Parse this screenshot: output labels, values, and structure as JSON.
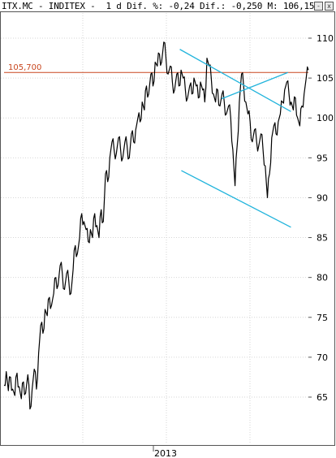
{
  "header": {
    "ticker_line": "ITX.MC - INDITEX -  1 d Dif. %: -0,24 Dif.: -0,250 M: 106,150",
    "button_min_label": "-",
    "button_close_label": "x"
  },
  "colors": {
    "price_line": "#000000",
    "reference_line": "#c8461e",
    "trend_lines": "#22b4dc",
    "grid": "#d6d6d6",
    "frame": "#555555"
  },
  "chart_data": {
    "type": "line",
    "y_axis_side": "right",
    "ylim": [
      61,
      112
    ],
    "yticks": [
      65,
      70,
      75,
      80,
      85,
      90,
      95,
      100,
      105,
      110
    ],
    "x_tick_labels": [
      "2013"
    ],
    "grid": true,
    "reference_line": {
      "label": "105,700",
      "value": 105.7
    },
    "series": [
      {
        "values": [
          66.5,
          68.2,
          65.8,
          67.5,
          66.0,
          65.2,
          68.0,
          66.3,
          64.8,
          66.9,
          65.5,
          67.8,
          63.5,
          66.0,
          68.5,
          66.0,
          70.5,
          74.0,
          73.0,
          76.0,
          75.2,
          77.5,
          76.5,
          78.0,
          80.0,
          79.0,
          81.5,
          80.5,
          78.5,
          80.5,
          79.5,
          78.0,
          81.0,
          84.0,
          83.0,
          85.0,
          88.0,
          87.0,
          86.0,
          84.5,
          86.0,
          85.0,
          88.0,
          86.5,
          85.0,
          88.5,
          87.0,
          93.0,
          92.0,
          95.0,
          97.0,
          96.0,
          95.5,
          97.5,
          96.0,
          95.0,
          97.0,
          96.5,
          95.0,
          98.0,
          97.0,
          98.5,
          100.0,
          99.5,
          102.0,
          101.0,
          104.0,
          103.0,
          105.5,
          104.0,
          107.0,
          106.5,
          108.0,
          107.0,
          109.5,
          107.5,
          105.5,
          106.5,
          104.5,
          103.5,
          105.5,
          104.0,
          106.0,
          105.0,
          103.5,
          102.5,
          104.0,
          103.0,
          105.0,
          104.0,
          102.5,
          104.5,
          103.5,
          102.0,
          107.5,
          106.5,
          105.0,
          103.0,
          102.0,
          103.5,
          101.5,
          103.0,
          102.0,
          100.5,
          101.5,
          100.0,
          96.0,
          91.5,
          96.5,
          102.0,
          105.5,
          104.0,
          102.0,
          100.5,
          99.5,
          97.0,
          98.5,
          97.0,
          96.5,
          98.0,
          96.0,
          94.0,
          90.0,
          93.0,
          97.5,
          99.0,
          98.0,
          99.5,
          100.5,
          102.0,
          103.5,
          104.5,
          103.0,
          102.0,
          101.0,
          102.5,
          100.0,
          99.0,
          101.5,
          103.0,
          105.0,
          106.0
        ]
      }
    ],
    "trend_lines": [
      {
        "x": [
          0.5775,
          0.9425
        ],
        "y": [
          108.6,
          100.8
        ]
      },
      {
        "x": [
          0.715,
          0.9325
        ],
        "y": [
          102.4,
          105.7
        ]
      },
      {
        "x": [
          0.5825,
          0.9425
        ],
        "y": [
          93.4,
          86.3
        ]
      }
    ]
  }
}
